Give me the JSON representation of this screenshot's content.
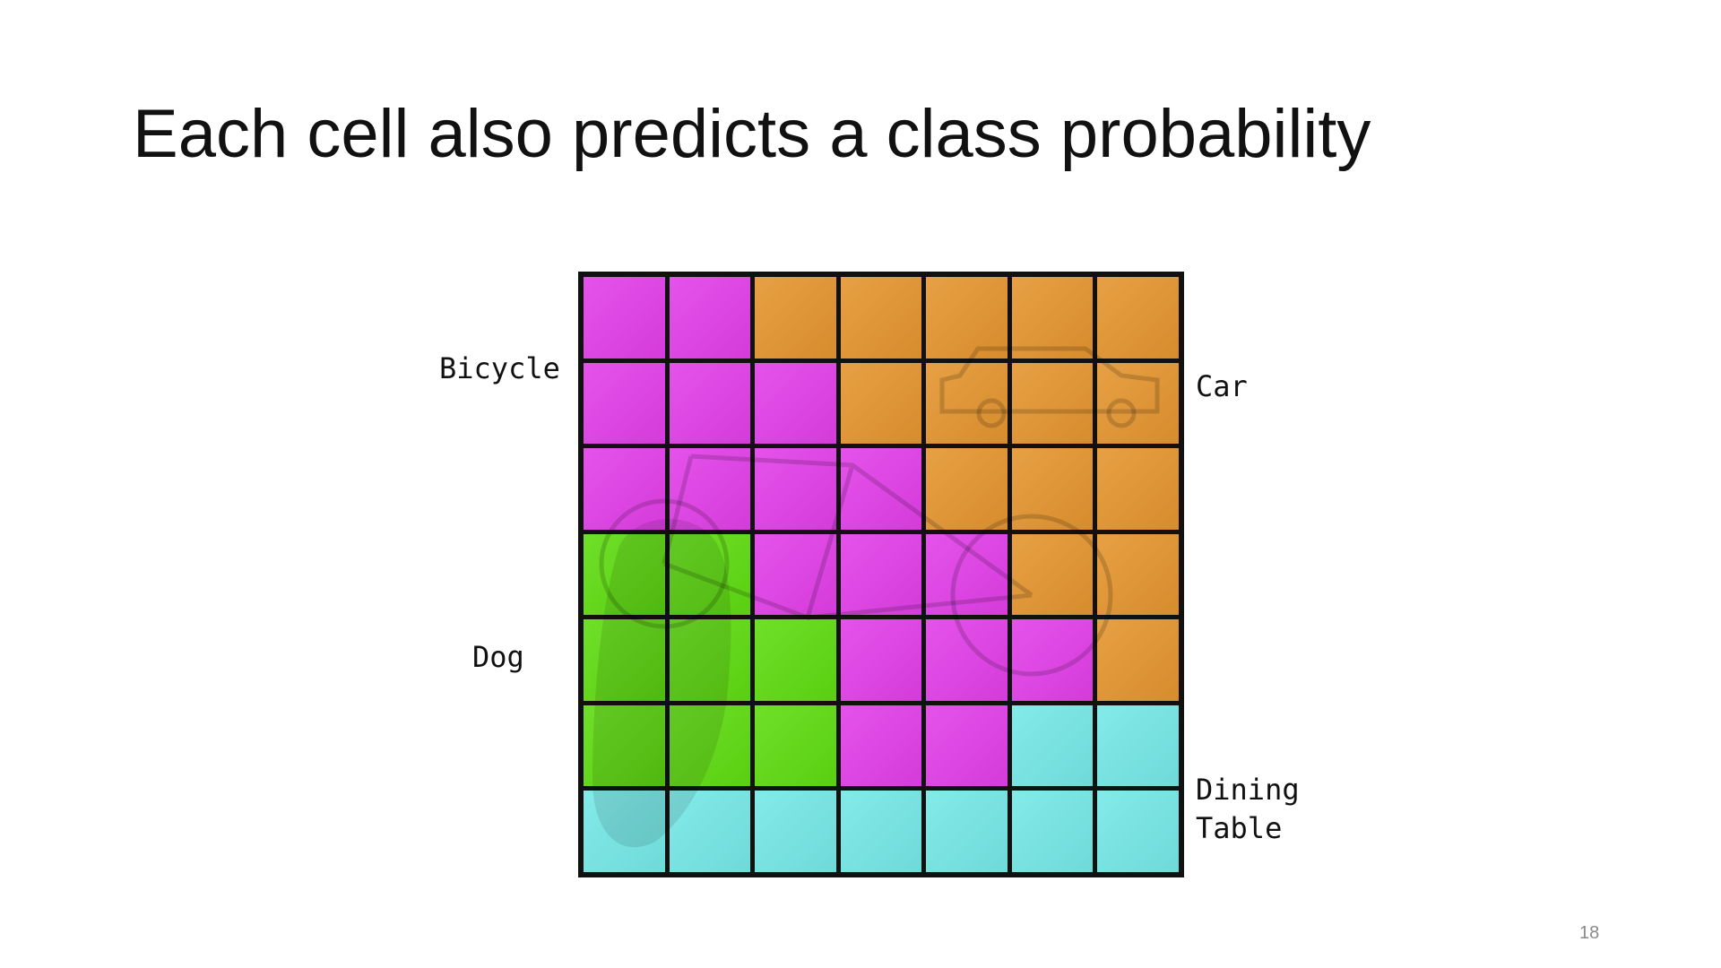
{
  "slide": {
    "title": "Each cell also predicts a class probability",
    "page_number": "18"
  },
  "labels": {
    "bicycle": "Bicycle",
    "car": "Car",
    "dog": "Dog",
    "dining_table": "Dining\nTable"
  },
  "grid": {
    "rows": 7,
    "cols": 7,
    "class_colors": {
      "bicycle": "#e23fe8",
      "car": "#e4952f",
      "dog": "#5fdc11",
      "dining_table": "#75e8e6"
    },
    "cells": [
      [
        "bicycle",
        "bicycle",
        "car",
        "car",
        "car",
        "car",
        "car"
      ],
      [
        "bicycle",
        "bicycle",
        "bicycle",
        "car",
        "car",
        "car",
        "car"
      ],
      [
        "bicycle",
        "bicycle",
        "bicycle",
        "bicycle",
        "car",
        "car",
        "car"
      ],
      [
        "dog",
        "dog",
        "bicycle",
        "bicycle",
        "bicycle",
        "car",
        "car"
      ],
      [
        "dog",
        "dog",
        "dog",
        "bicycle",
        "bicycle",
        "bicycle",
        "car"
      ],
      [
        "dog",
        "dog",
        "dog",
        "bicycle",
        "bicycle",
        "dining_table",
        "dining_table"
      ],
      [
        "dining_table",
        "dining_table",
        "dining_table",
        "dining_table",
        "dining_table",
        "dining_table",
        "dining_table"
      ]
    ]
  }
}
